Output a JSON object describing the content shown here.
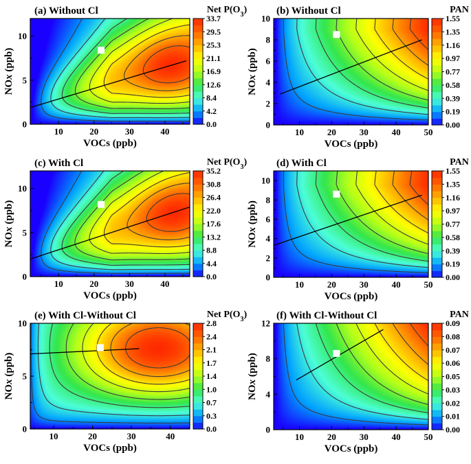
{
  "figure": {
    "colormap": [
      "#1a00ff",
      "#00a2ff",
      "#4dffd6",
      "#33e64d",
      "#b3ff1a",
      "#ffff00",
      "#ffb300",
      "#ff6600",
      "#ff2a00"
    ],
    "contour_line_color": "#3a3a3a",
    "marker_color": "#ffffff",
    "ridge_line_color": "#000000"
  },
  "chart_data": [
    {
      "id": "a",
      "type": "heatmap",
      "title": "(a) Without Cl",
      "xlabel": "VOCs (ppb)",
      "ylabel": "NOx (ppb)",
      "ylabel_plain": "NO",
      "ylabel_italic": "x",
      "ylabel_rest": " (ppb)",
      "xlim": [
        2,
        47
      ],
      "ylim": [
        0,
        12
      ],
      "xticks": [
        10,
        20,
        30,
        40
      ],
      "yticks": [
        0,
        5,
        10
      ],
      "colorbar": {
        "title": "Net P(O3)",
        "title_main": "Net P(O",
        "title_sub": "3",
        "title_end": ")",
        "labels": [
          "33.7",
          "29.5",
          "25.3",
          "21.1",
          "16.9",
          "12.6",
          "8.4",
          "4.2",
          "0.0"
        ],
        "min": 0,
        "max": 33.7
      },
      "surface": {
        "shape": "ozone",
        "vmax": 33.7,
        "peak": [
          42,
          6.5
        ],
        "sat": 25,
        "v0": 2.5,
        "vm": 4,
        "s": 1.4,
        "ridge": [
          1.5,
          0.13
        ]
      },
      "marker": [
        22,
        8.4
      ],
      "ridge_line": {
        "x": [
          2,
          46
        ],
        "y": [
          1.9,
          7.2
        ]
      }
    },
    {
      "id": "b",
      "type": "heatmap",
      "title": "(b) Without Cl",
      "xlabel": "VOCs (ppb)",
      "ylabel": "NOx (ppb)",
      "ylabel_plain": "NO",
      "ylabel_italic": "x",
      "ylabel_rest": " (ppb)",
      "xlim": [
        2,
        50
      ],
      "ylim": [
        0,
        10
      ],
      "xticks": [
        10,
        20,
        30,
        40,
        50
      ],
      "yticks": [
        0,
        2,
        4,
        6,
        8,
        10
      ],
      "colorbar": {
        "title": "PAN",
        "title_main": "PAN",
        "title_sub": "",
        "title_end": "",
        "labels": [
          "1.55",
          "1.35",
          "1.16",
          "0.97",
          "0.77",
          "0.58",
          "0.39",
          "0.19",
          "0.00"
        ],
        "min": 0,
        "max": 1.55
      },
      "surface": {
        "shape": "pan",
        "vmax": 1.55,
        "peak": [
          48,
          8
        ],
        "v0": 2.5,
        "vm": 3,
        "vy": 12,
        "nx": 1.2,
        "ny": 1.0
      },
      "marker": [
        21.5,
        8.5
      ],
      "ridge_line": {
        "x": [
          4,
          48
        ],
        "y": [
          2.9,
          8.0
        ]
      }
    },
    {
      "id": "c",
      "type": "heatmap",
      "title": "(c) With Cl",
      "xlabel": "VOCs (ppb)",
      "ylabel": "NOx (ppb)",
      "ylabel_plain": "NO",
      "ylabel_italic": "x",
      "ylabel_rest": " (ppb)",
      "xlim": [
        2,
        47
      ],
      "ylim": [
        0,
        12
      ],
      "xticks": [
        10,
        20,
        30,
        40
      ],
      "yticks": [
        0,
        5,
        10
      ],
      "colorbar": {
        "title": "Net P(O3)",
        "title_main": "Net P(O",
        "title_sub": "3",
        "title_end": ")",
        "labels": [
          "35.2",
          "30.8",
          "26.4",
          "22.0",
          "17.6",
          "13.2",
          "8.8",
          "4.4",
          "0.0"
        ],
        "min": 0,
        "max": 35.2
      },
      "surface": {
        "shape": "ozone",
        "vmax": 35.2,
        "peak": [
          43,
          7.0
        ],
        "sat": 25,
        "v0": 2.5,
        "vm": 4,
        "s": 1.4,
        "ridge": [
          1.5,
          0.14
        ]
      },
      "marker": [
        22,
        8.2
      ],
      "ridge_line": {
        "x": [
          2,
          47
        ],
        "y": [
          2.0,
          7.9
        ]
      }
    },
    {
      "id": "d",
      "type": "heatmap",
      "title": "(d) With Cl",
      "xlabel": "VOCs (ppb)",
      "ylabel": "NOx (ppb)",
      "ylabel_plain": "NO",
      "ylabel_italic": "x",
      "ylabel_rest": " (ppb)",
      "xlim": [
        2,
        50
      ],
      "ylim": [
        0,
        11
      ],
      "xticks": [
        10,
        20,
        30,
        40,
        50
      ],
      "yticks": [
        0,
        2,
        4,
        6,
        8,
        10
      ],
      "colorbar": {
        "title": "PAN",
        "title_main": "PAN",
        "title_sub": "",
        "title_end": "",
        "labels": [
          "1.55",
          "1.35",
          "1.16",
          "0.97",
          "0.77",
          "0.58",
          "0.39",
          "0.19",
          "0.00"
        ],
        "min": 0,
        "max": 1.55
      },
      "surface": {
        "shape": "pan",
        "vmax": 1.55,
        "peak": [
          48,
          8.5
        ],
        "v0": 2.5,
        "vm": 3,
        "vy": 12,
        "nx": 1.2,
        "ny": 1.0
      },
      "marker": [
        21.5,
        8.6
      ],
      "ridge_line": {
        "x": [
          2,
          48
        ],
        "y": [
          3.3,
          8.5
        ]
      }
    },
    {
      "id": "e",
      "type": "heatmap",
      "title": "(e) With Cl-Without Cl",
      "xlabel": "VOCs (ppb)",
      "ylabel": "NOx (ppb)",
      "ylabel_plain": "NO",
      "ylabel_italic": "x",
      "ylabel_rest": " (ppb)",
      "xlim": [
        4,
        45
      ],
      "ylim": [
        0,
        10
      ],
      "xticks": [
        10,
        20,
        30,
        40
      ],
      "yticks": [
        0,
        5,
        10
      ],
      "colorbar": {
        "title": "Net P(O3)",
        "title_main": "Net P(O",
        "title_sub": "3",
        "title_end": ")",
        "labels": [
          "2.8",
          "2.4",
          "2.1",
          "1.7",
          "1.4",
          "1.0",
          "0.7",
          "0.3",
          "0.0"
        ],
        "min": 0,
        "max": 2.8
      },
      "surface": {
        "shape": "diff",
        "vmax": 2.8,
        "peak": [
          37,
          7.6
        ],
        "sigx": 14,
        "sigy": 3.2,
        "v0": 3,
        "vm": 3
      },
      "marker": [
        22,
        7.7
      ],
      "ridge_line": {
        "x": [
          4,
          32
        ],
        "y": [
          7.1,
          7.6
        ]
      }
    },
    {
      "id": "f",
      "type": "heatmap",
      "title": "(f) With Cl-Without Cl",
      "xlabel": "VOCs (ppb)",
      "ylabel": "NOx (ppb)",
      "ylabel_plain": "NO",
      "ylabel_italic": "x",
      "ylabel_rest": " (ppb)",
      "xlim": [
        2,
        50
      ],
      "ylim": [
        0,
        12
      ],
      "xticks": [
        10,
        20,
        30,
        40,
        50
      ],
      "yticks": [
        0,
        4,
        8,
        12
      ],
      "colorbar": {
        "title": "PAN",
        "title_main": "PAN",
        "title_sub": "",
        "title_end": "",
        "labels": [
          "0.09",
          "0.08",
          "0.07",
          "0.06",
          "0.05",
          "0.03",
          "0.02",
          "0.01",
          "0.00"
        ],
        "min": 0,
        "max": 0.09
      },
      "surface": {
        "shape": "pan",
        "vmax": 0.09,
        "peak": [
          48,
          11.5
        ],
        "v0": 2.5,
        "vm": 3,
        "vy": 22,
        "nx": 1.5,
        "ny": 1.2
      },
      "marker": [
        21.5,
        8.6
      ],
      "ridge_line": {
        "x": [
          9,
          36
        ],
        "y": [
          5.6,
          11.3
        ]
      }
    }
  ]
}
